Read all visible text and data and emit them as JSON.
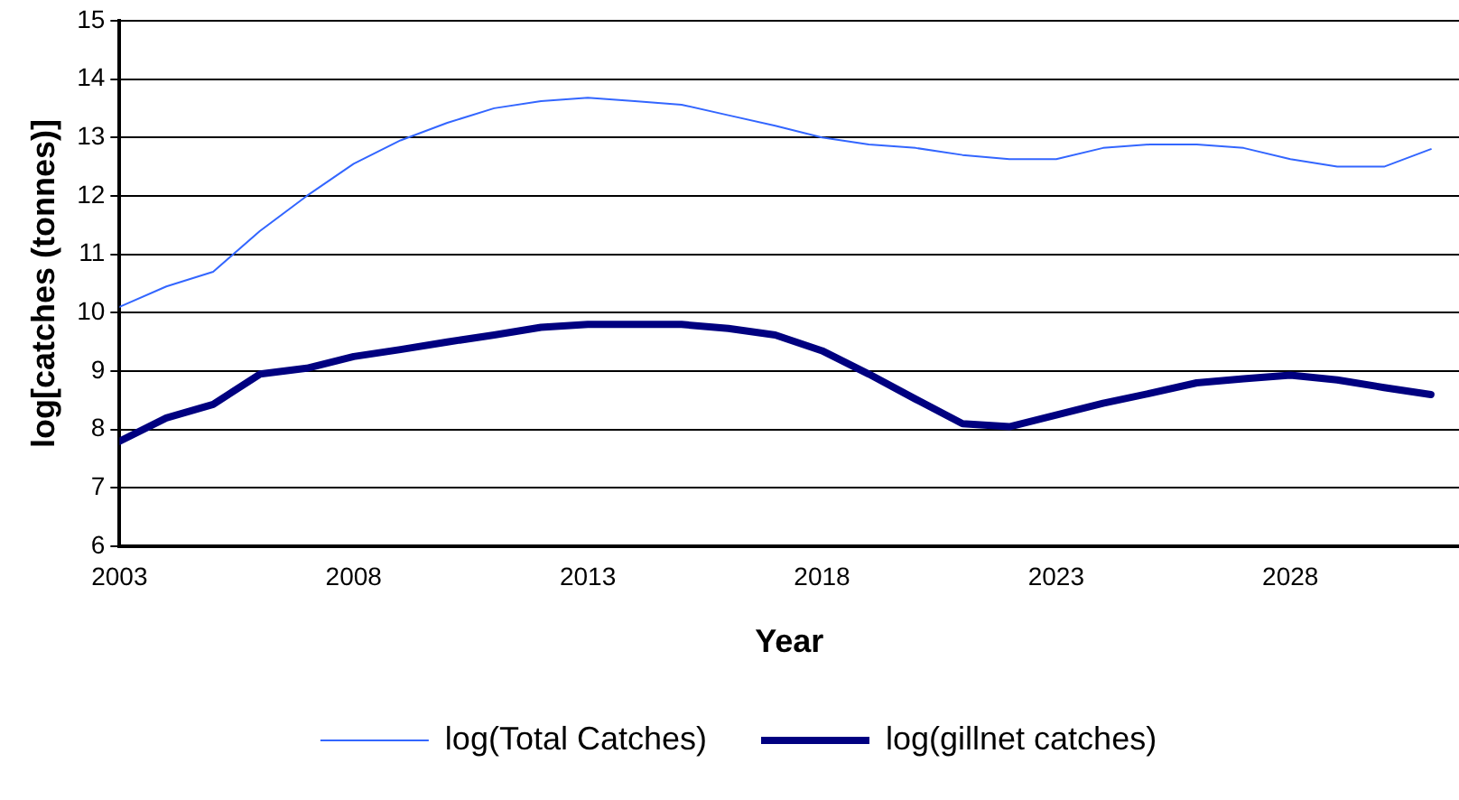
{
  "chart_data": {
    "type": "line",
    "xlabel": "Year",
    "ylabel": "log[catches (tonnes)]",
    "x": [
      2003,
      2004,
      2005,
      2006,
      2007,
      2008,
      2009,
      2010,
      2011,
      2012,
      2013,
      2014,
      2015,
      2016,
      2017,
      2018,
      2019,
      2020,
      2021,
      2022,
      2023,
      2024,
      2025,
      2026,
      2027,
      2028,
      2029,
      2030,
      2031
    ],
    "series": [
      {
        "name": "log(Total Catches)",
        "color": "#3366ff",
        "values": [
          10.1,
          10.45,
          10.7,
          11.4,
          12.0,
          12.55,
          12.95,
          13.25,
          13.5,
          13.62,
          13.68,
          13.62,
          13.56,
          13.38,
          13.2,
          13.0,
          12.88,
          12.82,
          12.7,
          12.63,
          12.63,
          12.82,
          12.88,
          12.88,
          12.82,
          12.63,
          12.5,
          12.5,
          12.8
        ]
      },
      {
        "name": "log(gillnet catches)",
        "color": "#000080",
        "values": [
          7.8,
          8.2,
          8.43,
          8.95,
          9.05,
          9.25,
          9.37,
          9.5,
          9.62,
          9.75,
          9.8,
          9.8,
          9.8,
          9.73,
          9.62,
          9.35,
          8.95,
          8.52,
          8.1,
          8.05,
          8.25,
          8.45,
          8.62,
          8.8,
          8.87,
          8.93,
          8.85,
          8.72,
          8.6
        ]
      }
    ],
    "xlim": [
      2003,
      2031.6
    ],
    "xticks": [
      2003,
      2008,
      2013,
      2018,
      2023,
      2028
    ],
    "ylim": [
      6,
      15
    ],
    "yticks": [
      6,
      7,
      8,
      9,
      10,
      11,
      12,
      13,
      14,
      15
    ],
    "grid": "y",
    "legend": "bottom",
    "marker": "none",
    "line_style": "solid"
  }
}
